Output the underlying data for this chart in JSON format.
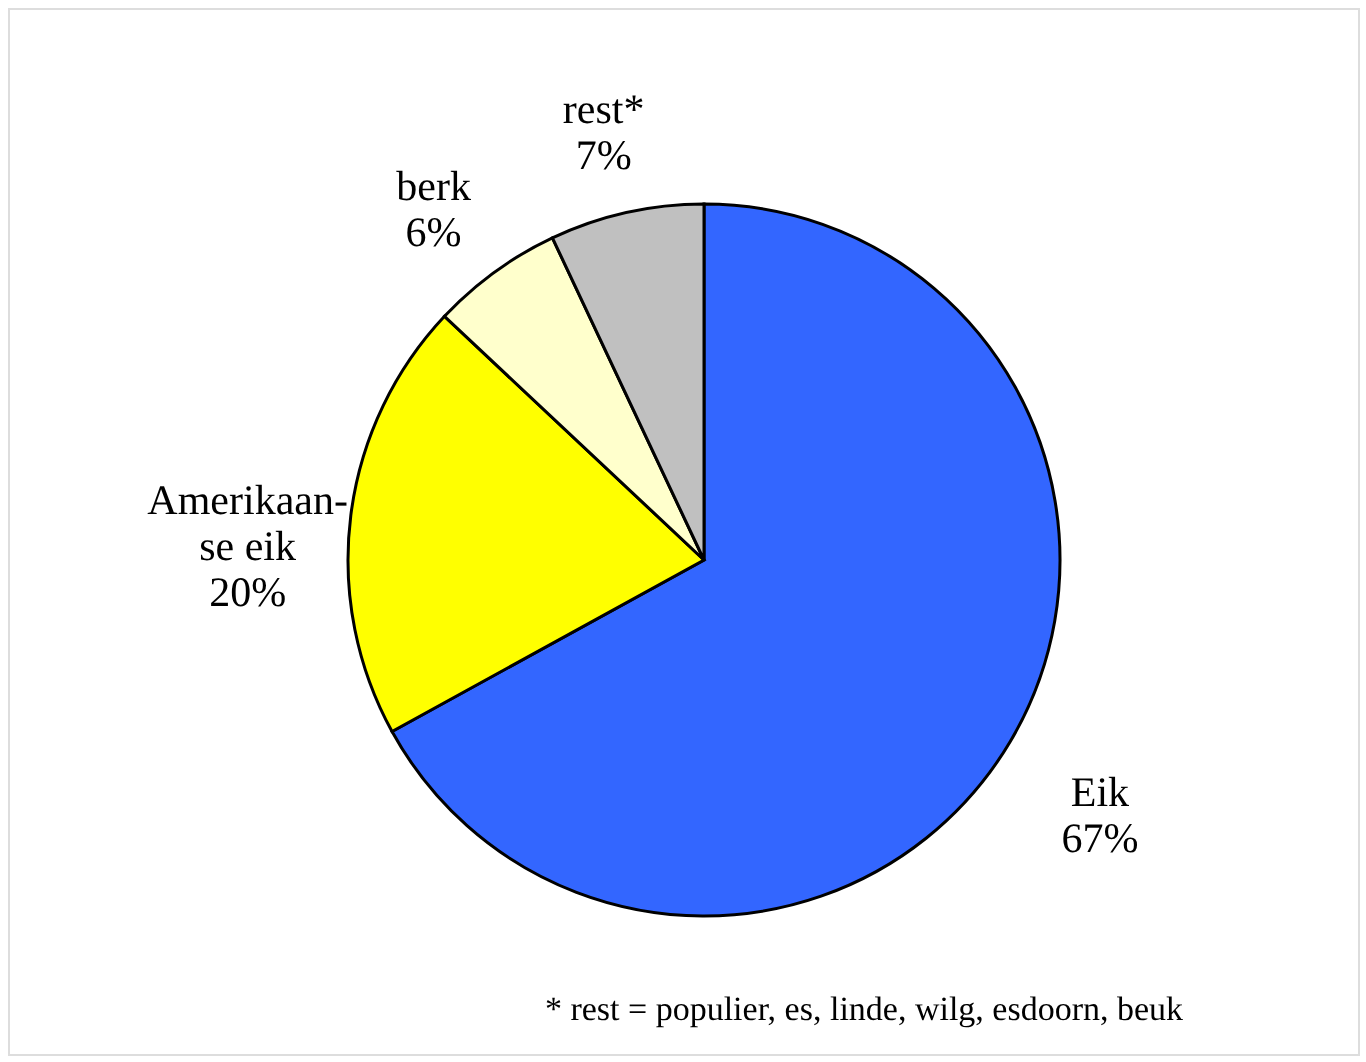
{
  "chart_data": {
    "type": "pie",
    "categories": [
      "Eik",
      "Amerikaan-\nse eik",
      "berk",
      "rest*"
    ],
    "values": [
      67,
      20,
      6,
      7
    ],
    "value_labels": [
      "67%",
      "20%",
      "6%",
      "7%"
    ],
    "colors": [
      "#3366ff",
      "#ffff00",
      "#ffffcc",
      "#c0c0c0"
    ],
    "legend": false,
    "annotations": [
      "* rest = populier, es, linde, wilg, esdoorn, beuk"
    ]
  }
}
